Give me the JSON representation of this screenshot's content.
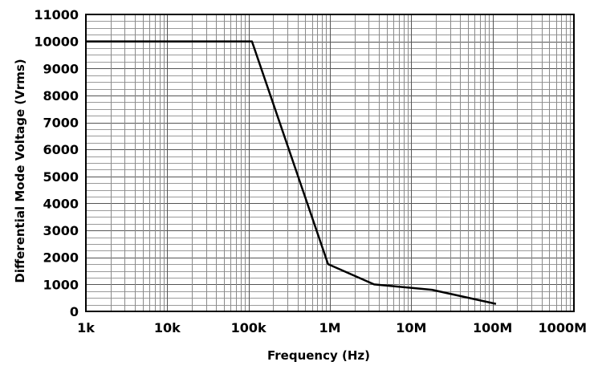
{
  "chart_data": {
    "type": "line",
    "title": "",
    "xlabel": "Frequency (Hz)",
    "ylabel": "Differential Mode Voltage (Vrms)",
    "xscale": "log",
    "xlim": [
      1000,
      1000000000
    ],
    "ylim": [
      0,
      11000
    ],
    "grid": true,
    "x_tick_values": [
      1000,
      10000,
      100000,
      1000000,
      10000000,
      100000000,
      1000000000
    ],
    "x_tick_labels": [
      "1k",
      "10k",
      "100k",
      "1M",
      "10M",
      "100M",
      "1000M"
    ],
    "y_tick_values": [
      0,
      1000,
      2000,
      3000,
      4000,
      5000,
      6000,
      7000,
      8000,
      9000,
      10000,
      11000
    ],
    "y_tick_labels": [
      "0",
      "1000",
      "2000",
      "3000",
      "4000",
      "5000",
      "6000",
      "7000",
      "8000",
      "9000",
      "10000",
      "11000"
    ],
    "series": [
      {
        "name": "Differential Mode Voltage",
        "color": "#000000",
        "x": [
          1000,
          110000,
          950000,
          3500000,
          18000000,
          110000000
        ],
        "y": [
          10000,
          10000,
          1750,
          1000,
          800,
          280
        ]
      }
    ]
  }
}
